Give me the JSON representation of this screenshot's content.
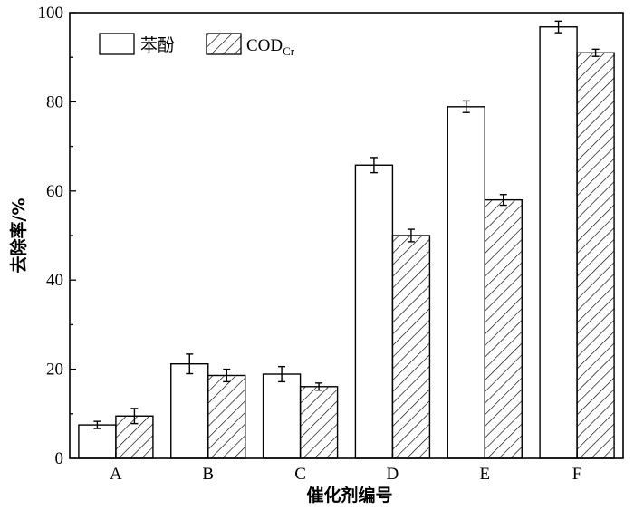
{
  "chart_data": {
    "type": "bar",
    "categories": [
      "A",
      "B",
      "C",
      "D",
      "E",
      "F"
    ],
    "series": [
      {
        "name": "苯酚",
        "values": [
          7.5,
          21.2,
          18.9,
          65.8,
          78.9,
          96.8
        ],
        "errors": [
          0.8,
          2.2,
          1.7,
          1.7,
          1.3,
          1.3
        ],
        "fill": "#ffffff"
      },
      {
        "name": "CODCr",
        "name_main": "COD",
        "name_sub": "Cr",
        "values": [
          9.5,
          18.6,
          16.1,
          50.0,
          58.0,
          91.0
        ],
        "errors": [
          1.7,
          1.4,
          0.8,
          1.4,
          1.2,
          0.8
        ],
        "fill": "hatch"
      }
    ],
    "xlabel": "催化剂编号",
    "ylabel": "去除率/%",
    "ylim": [
      0,
      100
    ],
    "yticks": [
      0,
      20,
      40,
      60,
      80,
      100
    ],
    "legend_position": "top-left",
    "grid": false
  }
}
